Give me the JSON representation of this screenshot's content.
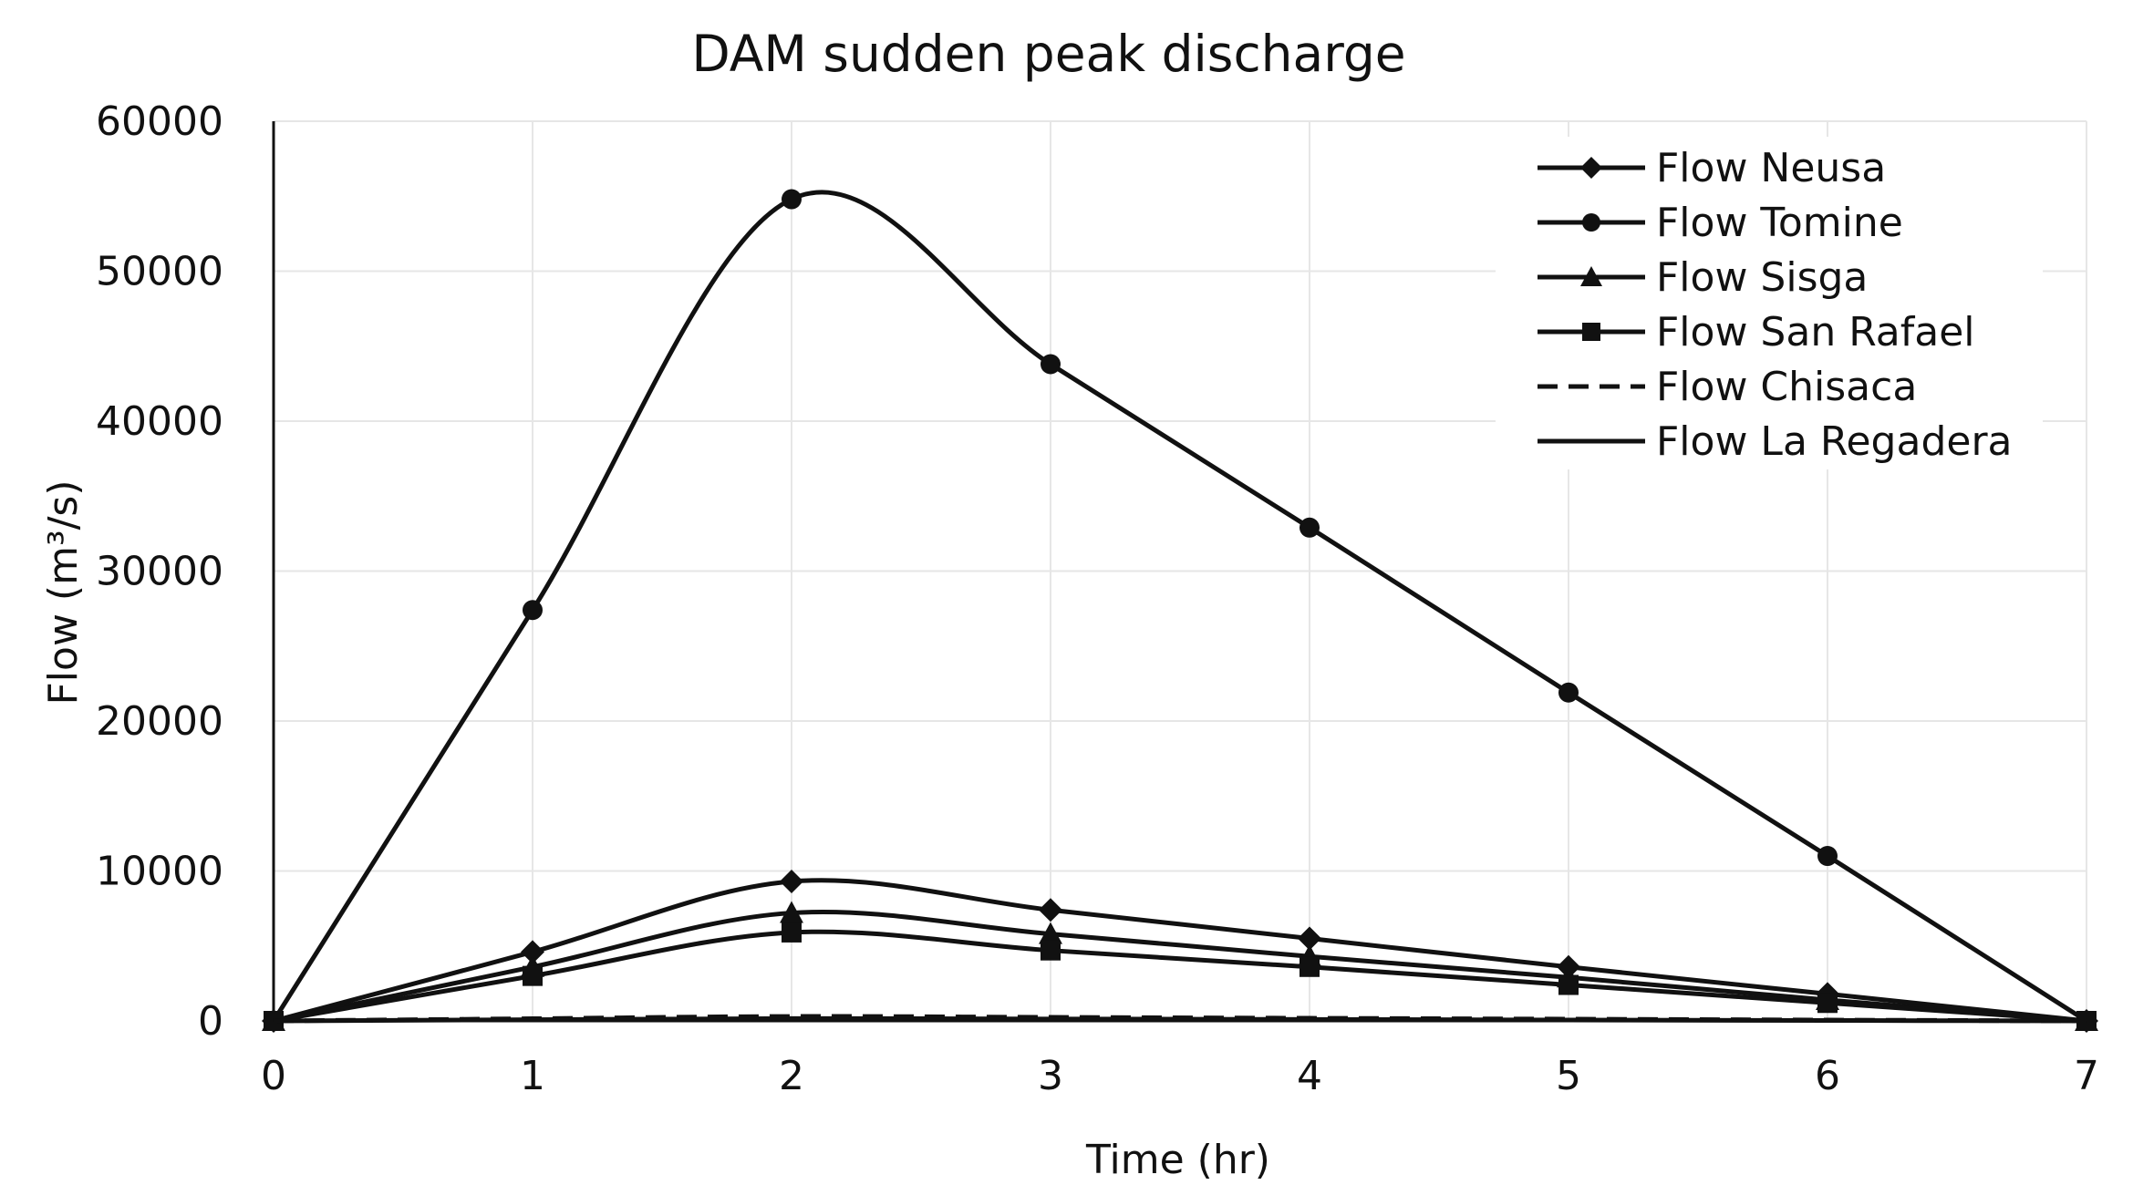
{
  "chart_data": {
    "type": "line",
    "title": "DAM sudden peak discharge",
    "xlabel": "Time (hr)",
    "ylabel": "Flow (m³/s)",
    "xlim": [
      0,
      7
    ],
    "ylim": [
      0,
      60000
    ],
    "x_ticks": [
      "0",
      "1",
      "2",
      "3",
      "4",
      "5",
      "6",
      "7"
    ],
    "y_ticks": [
      "0",
      "10000",
      "20000",
      "30000",
      "40000",
      "50000",
      "60000"
    ],
    "grid": true,
    "legend_position": "top-right",
    "x": [
      0,
      1,
      2,
      3,
      4,
      5,
      6,
      7
    ],
    "series": [
      {
        "name": "Flow Neusa",
        "marker": "diamond",
        "dash": "solid",
        "values": [
          0,
          4600,
          9300,
          7400,
          5500,
          3600,
          1800,
          0
        ]
      },
      {
        "name": "Flow Tomine",
        "marker": "circle",
        "dash": "solid",
        "values": [
          0,
          27400,
          54800,
          43800,
          32900,
          21900,
          11000,
          0
        ]
      },
      {
        "name": "Flow Sisga",
        "marker": "triangle",
        "dash": "solid",
        "values": [
          0,
          3600,
          7200,
          5800,
          4300,
          2900,
          1400,
          0
        ]
      },
      {
        "name": "Flow San Rafael",
        "marker": "square",
        "dash": "solid",
        "values": [
          0,
          3000,
          5900,
          4700,
          3600,
          2400,
          1200,
          0
        ]
      },
      {
        "name": "Flow Chisaca",
        "marker": "none",
        "dash": "dashed",
        "values": [
          0,
          150,
          300,
          240,
          180,
          120,
          60,
          0
        ]
      },
      {
        "name": "Flow La Regadera",
        "marker": "none",
        "dash": "solid",
        "values": [
          0,
          80,
          160,
          130,
          100,
          60,
          30,
          0
        ]
      }
    ],
    "colors": {
      "line": "#111111",
      "grid": "#e6e6e6",
      "axis": "#111111"
    }
  }
}
